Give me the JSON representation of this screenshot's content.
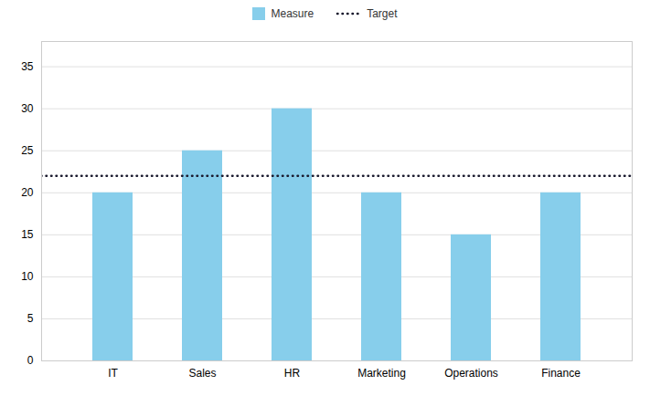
{
  "chart_data": {
    "type": "bar",
    "categories": [
      "IT",
      "Sales",
      "HR",
      "Marketing",
      "Operations",
      "Finance"
    ],
    "series": [
      {
        "name": "Measure",
        "type": "bar",
        "color": "#87CEEB",
        "values": [
          20,
          25,
          30,
          20,
          15,
          20
        ]
      }
    ],
    "target": {
      "name": "Target",
      "value": 22,
      "color": "#1a1a2e",
      "line_style": "dotted"
    },
    "ylim": [
      0,
      38
    ],
    "yticks": [
      0,
      5,
      10,
      15,
      20,
      25,
      30,
      35
    ],
    "grid": true,
    "legend": "top"
  }
}
